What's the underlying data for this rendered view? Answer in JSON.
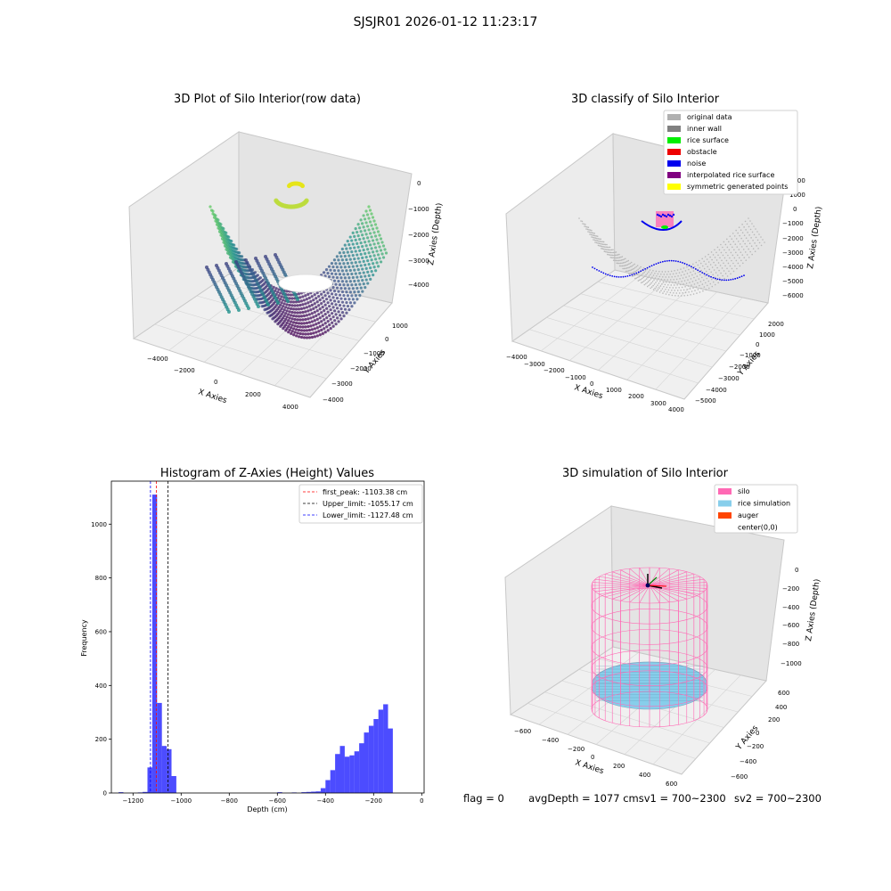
{
  "suptitle": "SJSJR01 2026-01-12 11:23:17",
  "panels": {
    "raw": {
      "title": "3D Plot of Silo Interior(row data)",
      "xlabel": "X Axies",
      "ylabel": "Y Axies",
      "zlabel": "Z Axies (Depth)",
      "xticks": [
        "−4000",
        "−2000",
        "0",
        "2000",
        "4000"
      ],
      "yticks": [
        "−4000",
        "−3000",
        "−2000",
        "−1000",
        "0",
        "1000"
      ],
      "zticks": [
        "0",
        "−1000",
        "−2000",
        "−3000",
        "−4000"
      ]
    },
    "classify": {
      "title": "3D classify of Silo Interior",
      "xlabel": "X Axies",
      "ylabel": "Y Axies",
      "zlabel": "Z Axies (Depth)",
      "xticks": [
        "−4000",
        "−3000",
        "−2000",
        "−1000",
        "0",
        "1000",
        "2000",
        "3000",
        "4000"
      ],
      "yticks": [
        "−5000",
        "−4000",
        "−3000",
        "−2000",
        "−1000",
        "0",
        "1000",
        "2000"
      ],
      "zticks": [
        "2000",
        "1000",
        "0",
        "−1000",
        "−2000",
        "−3000",
        "−4000",
        "−5000",
        "−6000"
      ],
      "legend": [
        {
          "label": "original data",
          "color": "#b0b0b0"
        },
        {
          "label": "inner wall",
          "color": "#808080"
        },
        {
          "label": "rice surface",
          "color": "#00ee00"
        },
        {
          "label": "obstacle",
          "color": "#ee0000"
        },
        {
          "label": "noise",
          "color": "#0000ee"
        },
        {
          "label": "interpolated rice surface",
          "color": "#800080"
        },
        {
          "label": "symmetric generated points",
          "color": "#ffff00"
        }
      ]
    },
    "sim": {
      "title": "3D simulation of Silo Interior",
      "xlabel": "X Axies",
      "ylabel": "Y Axies",
      "zlabel": "Z Axies (Depth)",
      "xticks": [
        "−600",
        "−400",
        "−200",
        "0",
        "200",
        "400",
        "600"
      ],
      "yticks": [
        "−600",
        "−400",
        "−200",
        "0",
        "200",
        "400",
        "600"
      ],
      "zticks": [
        "0",
        "−200",
        "−400",
        "−600",
        "−800",
        "−1000"
      ],
      "legend": [
        {
          "label": "silo",
          "color": "#ff69b4"
        },
        {
          "label": "rice simulation",
          "color": "#87ceeb"
        },
        {
          "label": "auger",
          "color": "#ff4500"
        },
        {
          "label": "center(0,0)",
          "color": "#ffffff"
        }
      ]
    }
  },
  "chart_data": {
    "type": "bar",
    "title": "Histogram of Z-Axies (Height) Values",
    "xlabel": "Depth (cm)",
    "ylabel": "Frequency",
    "xlim": [
      -1290,
      10
    ],
    "ylim": [
      0,
      1160
    ],
    "xticks": [
      -1200,
      -1000,
      -800,
      -600,
      -400,
      -200,
      0
    ],
    "yticks": [
      0,
      200,
      400,
      600,
      800,
      1000
    ],
    "bin_width": 20,
    "bar_color": "#0000ff",
    "bins": [
      {
        "x": -1250,
        "count": 3
      },
      {
        "x": -1170,
        "count": 2
      },
      {
        "x": -1150,
        "count": 4
      },
      {
        "x": -1130,
        "count": 95
      },
      {
        "x": -1110,
        "count": 1110
      },
      {
        "x": -1090,
        "count": 335
      },
      {
        "x": -1070,
        "count": 175
      },
      {
        "x": -1050,
        "count": 163
      },
      {
        "x": -1030,
        "count": 63
      },
      {
        "x": -590,
        "count": 3
      },
      {
        "x": -530,
        "count": 2
      },
      {
        "x": -490,
        "count": 3
      },
      {
        "x": -470,
        "count": 4
      },
      {
        "x": -450,
        "count": 5
      },
      {
        "x": -430,
        "count": 6
      },
      {
        "x": -410,
        "count": 18
      },
      {
        "x": -390,
        "count": 48
      },
      {
        "x": -370,
        "count": 85
      },
      {
        "x": -350,
        "count": 145
      },
      {
        "x": -330,
        "count": 175
      },
      {
        "x": -310,
        "count": 135
      },
      {
        "x": -290,
        "count": 140
      },
      {
        "x": -270,
        "count": 155
      },
      {
        "x": -250,
        "count": 185
      },
      {
        "x": -230,
        "count": 225
      },
      {
        "x": -210,
        "count": 250
      },
      {
        "x": -190,
        "count": 275
      },
      {
        "x": -170,
        "count": 310
      },
      {
        "x": -150,
        "count": 330
      },
      {
        "x": -130,
        "count": 240
      }
    ],
    "vlines": [
      {
        "label": "first_peak: -1103.38 cm",
        "value": -1103.38,
        "color": "#ff0000"
      },
      {
        "label": "Upper_limit: -1055.17 cm",
        "value": -1055.17,
        "color": "#000000"
      },
      {
        "label": "Lower_limit: -1127.48 cm",
        "value": -1127.48,
        "color": "#0000ff"
      }
    ],
    "legend_position": "top-right",
    "grid": false
  },
  "status": {
    "flag": "flag = 0",
    "avg_depth": "avgDepth = 1077 cm",
    "sv1": "sv1 = 700~2300",
    "sv2": "sv2 = 700~2300"
  }
}
